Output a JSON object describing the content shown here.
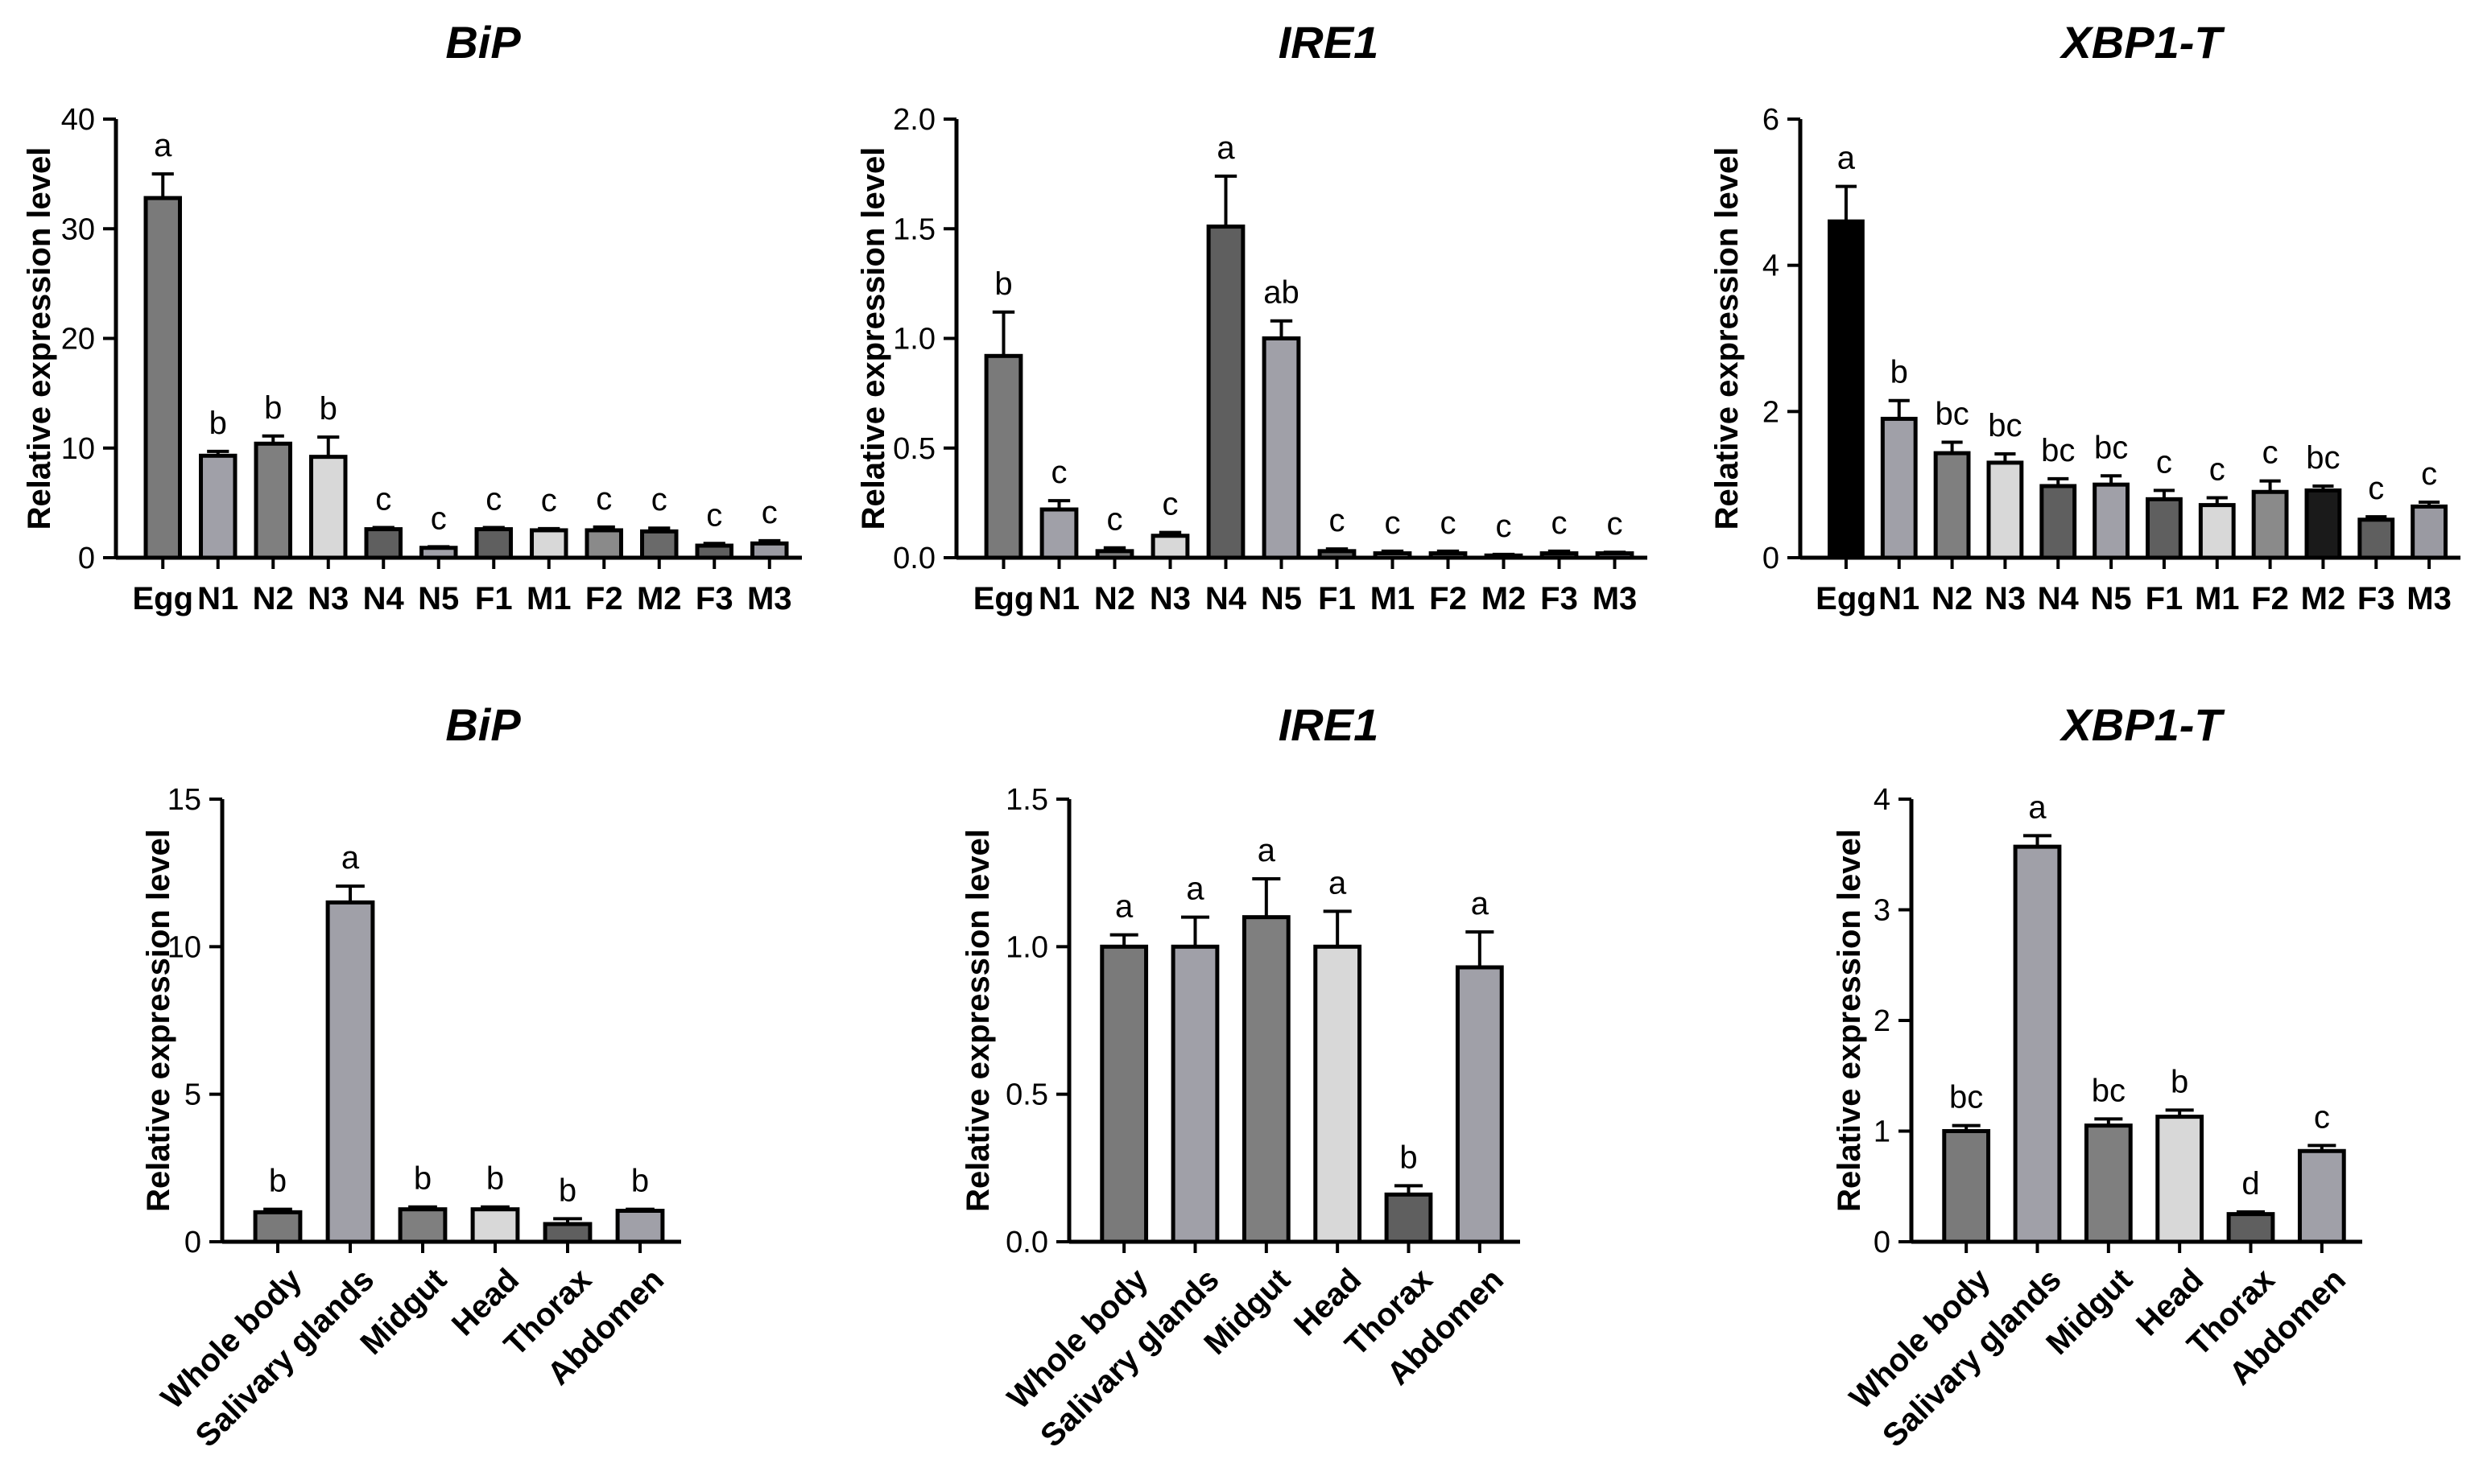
{
  "chart_data": [
    {
      "type": "bar",
      "title": "BiP",
      "ylabel": "Relative expression level",
      "xlabel": "",
      "ylim": [
        0,
        40
      ],
      "yticks": [
        0,
        10,
        20,
        30,
        40
      ],
      "ytick_labels": [
        "0",
        "10",
        "20",
        "30",
        "40"
      ],
      "categories": [
        "Egg",
        "N1",
        "N2",
        "N3",
        "N4",
        "N5",
        "F1",
        "M1",
        "F2",
        "M2",
        "F3",
        "M3"
      ],
      "values": [
        32.8,
        9.3,
        10.4,
        9.2,
        2.6,
        0.9,
        2.6,
        2.5,
        2.5,
        2.4,
        1.1,
        1.3
      ],
      "errors": [
        2.2,
        0.4,
        0.7,
        1.8,
        0.15,
        0.1,
        0.15,
        0.15,
        0.3,
        0.3,
        0.2,
        0.25
      ],
      "letters": [
        "a",
        "b",
        "b",
        "b",
        "c",
        "c",
        "c",
        "c",
        "c",
        "c",
        "c",
        "c"
      ],
      "colors": [
        "#7a7a7a",
        "#a0a0a8",
        "#7f7f7f",
        "#d8d8d8",
        "#5f5f5f",
        "#a0a0a8",
        "#5f5f5f",
        "#d8d8d8",
        "#8a8a8a",
        "#6a6a6a",
        "#5f5f5f",
        "#9a9aa2"
      ]
    },
    {
      "type": "bar",
      "title": "IRE1",
      "ylabel": "Relative expression level",
      "xlabel": "",
      "ylim": [
        0,
        2.0
      ],
      "yticks": [
        0,
        0.5,
        1.0,
        1.5,
        2.0
      ],
      "ytick_labels": [
        "0.0",
        "0.5",
        "1.0",
        "1.5",
        "2.0"
      ],
      "categories": [
        "Egg",
        "N1",
        "N2",
        "N3",
        "N4",
        "N5",
        "F1",
        "M1",
        "F2",
        "M2",
        "F3",
        "M3"
      ],
      "values": [
        0.92,
        0.22,
        0.03,
        0.1,
        1.51,
        1.0,
        0.03,
        0.02,
        0.02,
        0.01,
        0.02,
        0.02
      ],
      "errors": [
        0.2,
        0.04,
        0.015,
        0.015,
        0.23,
        0.08,
        0.01,
        0.01,
        0.01,
        0.005,
        0.01,
        0.005
      ],
      "letters": [
        "b",
        "c",
        "c",
        "c",
        "a",
        "ab",
        "c",
        "c",
        "c",
        "c",
        "c",
        "c"
      ],
      "colors": [
        "#7a7a7a",
        "#a0a0a8",
        "#7f7f7f",
        "#d8d8d8",
        "#5f5f5f",
        "#a0a0a8",
        "#5f5f5f",
        "#d8d8d8",
        "#8a8a8a",
        "#6a6a6a",
        "#5f5f5f",
        "#9a9aa2"
      ]
    },
    {
      "type": "bar",
      "title": "XBP1-T",
      "ylabel": "Relative expression level",
      "xlabel": "",
      "ylim": [
        0,
        6
      ],
      "yticks": [
        0,
        2,
        4,
        6
      ],
      "ytick_labels": [
        "0",
        "2",
        "4",
        "6"
      ],
      "categories": [
        "Egg",
        "N1",
        "N2",
        "N3",
        "N4",
        "N5",
        "F1",
        "M1",
        "F2",
        "M2",
        "F3",
        "M3"
      ],
      "values": [
        4.6,
        1.9,
        1.43,
        1.3,
        0.98,
        1.0,
        0.8,
        0.72,
        0.9,
        0.92,
        0.52,
        0.7
      ],
      "errors": [
        0.48,
        0.25,
        0.15,
        0.12,
        0.1,
        0.12,
        0.12,
        0.1,
        0.15,
        0.06,
        0.04,
        0.06
      ],
      "letters": [
        "a",
        "b",
        "bc",
        "bc",
        "bc",
        "bc",
        "c",
        "c",
        "c",
        "bc",
        "c",
        "c"
      ],
      "colors": [
        "#000000",
        "#a0a0a8",
        "#7f7f7f",
        "#d8d8d8",
        "#5f5f5f",
        "#a0a0a8",
        "#5f5f5f",
        "#d8d8d8",
        "#8a8a8a",
        "#1a1a1a",
        "#5f5f5f",
        "#9a9aa2"
      ]
    },
    {
      "type": "bar",
      "title": "BiP",
      "ylabel": "Relative expression level",
      "xlabel": "",
      "ylim": [
        0,
        15
      ],
      "yticks": [
        0,
        5,
        10,
        15
      ],
      "ytick_labels": [
        "0",
        "5",
        "10",
        "15"
      ],
      "categories": [
        "Whole body",
        "Salivary glands",
        "Midgut",
        "Head",
        "Thorax",
        "Abdomen"
      ],
      "values": [
        1.0,
        11.5,
        1.1,
        1.1,
        0.6,
        1.05
      ],
      "errors": [
        0.1,
        0.55,
        0.08,
        0.08,
        0.18,
        0.05
      ],
      "letters": [
        "b",
        "a",
        "b",
        "b",
        "b",
        "b"
      ],
      "colors": [
        "#7a7a7a",
        "#a0a0a8",
        "#7f7f7f",
        "#d8d8d8",
        "#5f5f5f",
        "#a0a0a8"
      ]
    },
    {
      "type": "bar",
      "title": "IRE1",
      "ylabel": "Relative expression level",
      "xlabel": "",
      "ylim": [
        0,
        1.5
      ],
      "yticks": [
        0,
        0.5,
        1.0,
        1.5
      ],
      "ytick_labels": [
        "0.0",
        "0.5",
        "1.0",
        "1.5"
      ],
      "categories": [
        "Whole body",
        "Salivary glands",
        "Midgut",
        "Head",
        "Thorax",
        "Abdomen"
      ],
      "values": [
        1.0,
        1.0,
        1.1,
        1.0,
        0.16,
        0.93
      ],
      "errors": [
        0.04,
        0.1,
        0.13,
        0.12,
        0.03,
        0.12
      ],
      "letters": [
        "a",
        "a",
        "a",
        "a",
        "b",
        "a"
      ],
      "colors": [
        "#7a7a7a",
        "#a0a0a8",
        "#7f7f7f",
        "#d8d8d8",
        "#5f5f5f",
        "#a0a0a8"
      ]
    },
    {
      "type": "bar",
      "title": "XBP1-T",
      "ylabel": "Relative expression level",
      "xlabel": "",
      "ylim": [
        0,
        4
      ],
      "yticks": [
        0,
        1,
        2,
        3,
        4
      ],
      "ytick_labels": [
        "0",
        "1",
        "2",
        "3",
        "4"
      ],
      "categories": [
        "Whole body",
        "Salivary glands",
        "Midgut",
        "Head",
        "Thorax",
        "Abdomen"
      ],
      "values": [
        1.0,
        3.57,
        1.05,
        1.13,
        0.25,
        0.82
      ],
      "errors": [
        0.05,
        0.1,
        0.06,
        0.06,
        0.02,
        0.05
      ],
      "letters": [
        "bc",
        "a",
        "bc",
        "b",
        "d",
        "c"
      ],
      "colors": [
        "#7a7a7a",
        "#a0a0a8",
        "#7f7f7f",
        "#d8d8d8",
        "#5f5f5f",
        "#a0a0a8"
      ]
    }
  ]
}
